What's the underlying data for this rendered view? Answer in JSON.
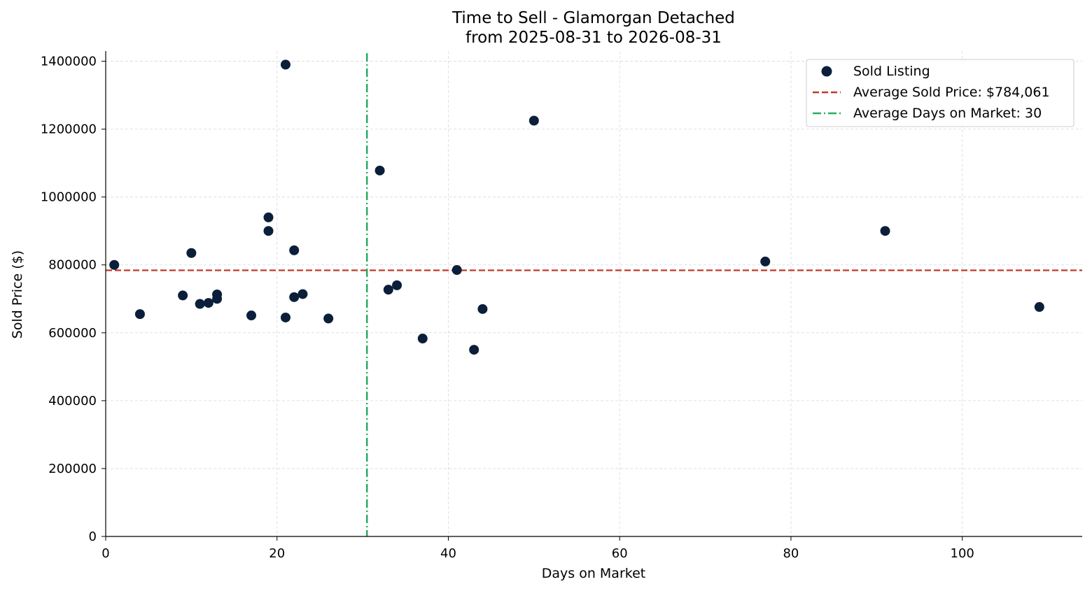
{
  "chart_data": {
    "type": "scatter",
    "title": "Time to Sell - Glamorgan Detached",
    "subtitle": "from 2025-08-31 to 2026-08-31",
    "xlabel": "Days on Market",
    "ylabel": "Sold Price ($)",
    "xlim": [
      0,
      114
    ],
    "ylim": [
      0,
      1430000
    ],
    "xticks": [
      0,
      20,
      40,
      60,
      80,
      100
    ],
    "yticks": [
      0,
      200000,
      400000,
      600000,
      800000,
      1000000,
      1200000,
      1400000
    ],
    "xtick_labels": [
      "0",
      "20",
      "40",
      "60",
      "80",
      "100"
    ],
    "ytick_labels": [
      "0",
      "200000",
      "400000",
      "600000",
      "800000",
      "1000000",
      "1200000",
      "1400000"
    ],
    "grid": true,
    "legend_position": "top-right",
    "series": [
      {
        "name": "Sold Listing",
        "color": "#0b1f3a",
        "points": [
          {
            "x": 1,
            "y": 800000
          },
          {
            "x": 4,
            "y": 655000
          },
          {
            "x": 9,
            "y": 710000
          },
          {
            "x": 10,
            "y": 835000
          },
          {
            "x": 11,
            "y": 685000
          },
          {
            "x": 12,
            "y": 688000
          },
          {
            "x": 13,
            "y": 700000
          },
          {
            "x": 13,
            "y": 713000
          },
          {
            "x": 17,
            "y": 651000
          },
          {
            "x": 19,
            "y": 940000
          },
          {
            "x": 19,
            "y": 900000
          },
          {
            "x": 21,
            "y": 1390000
          },
          {
            "x": 21,
            "y": 645000
          },
          {
            "x": 22,
            "y": 843000
          },
          {
            "x": 22,
            "y": 705000
          },
          {
            "x": 23,
            "y": 714000
          },
          {
            "x": 26,
            "y": 642000
          },
          {
            "x": 32,
            "y": 1078000
          },
          {
            "x": 33,
            "y": 727000
          },
          {
            "x": 34,
            "y": 740000
          },
          {
            "x": 37,
            "y": 583000
          },
          {
            "x": 41,
            "y": 785000
          },
          {
            "x": 43,
            "y": 550000
          },
          {
            "x": 44,
            "y": 670000
          },
          {
            "x": 50,
            "y": 1225000
          },
          {
            "x": 77,
            "y": 810000
          },
          {
            "x": 91,
            "y": 900000
          },
          {
            "x": 109,
            "y": 676000
          }
        ]
      }
    ],
    "reference_lines": [
      {
        "orientation": "horizontal",
        "value": 784061,
        "label": "Average Sold Price: $784,061",
        "color": "#c0392b",
        "style": "dashed"
      },
      {
        "orientation": "vertical",
        "value": 30.5,
        "label": "Average Days on Market: 30",
        "color": "#27ae60",
        "style": "dashdot"
      }
    ]
  }
}
